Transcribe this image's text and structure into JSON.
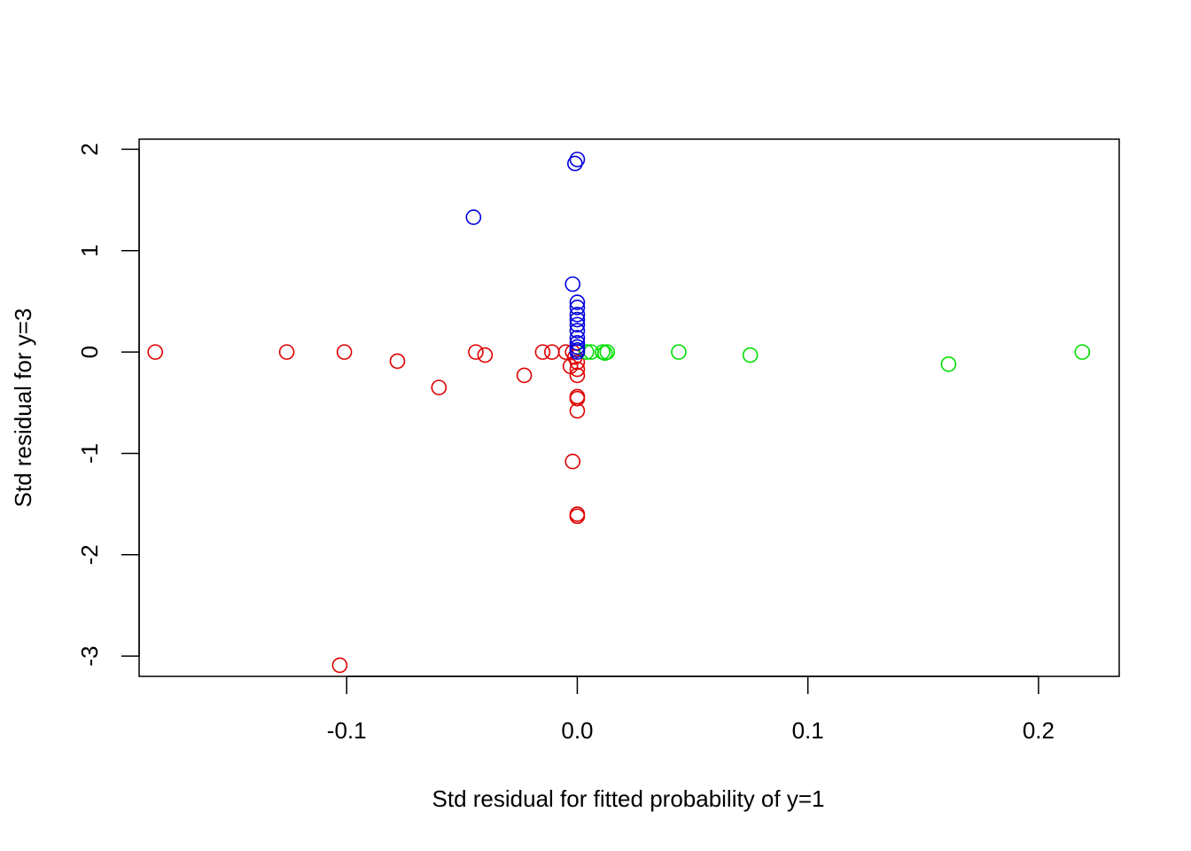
{
  "chart_data": {
    "type": "scatter",
    "title": "",
    "xlabel": "Std residual for fitted probability of y=1",
    "ylabel": "Std residual for y=3",
    "xlim": [
      -0.19,
      0.235
    ],
    "ylim": [
      -3.2,
      2.1
    ],
    "x_ticks": [
      -0.1,
      0.0,
      0.1,
      0.2
    ],
    "x_tick_labels": [
      "-0.1",
      "0.0",
      "0.1",
      "0.2"
    ],
    "y_ticks": [
      -3,
      -2,
      -1,
      0,
      1,
      2
    ],
    "y_tick_labels": [
      "-3",
      "-2",
      "-1",
      "0",
      "1",
      "2"
    ],
    "grid": false,
    "series": [
      {
        "color": "#DF0000",
        "points": [
          {
            "x": -0.183,
            "y": 0.0
          },
          {
            "x": -0.126,
            "y": 0.0
          },
          {
            "x": -0.101,
            "y": 0.0
          },
          {
            "x": -0.078,
            "y": -0.09
          },
          {
            "x": -0.06,
            "y": -0.35
          },
          {
            "x": -0.044,
            "y": 0.0
          },
          {
            "x": -0.04,
            "y": -0.03
          },
          {
            "x": -0.023,
            "y": -0.23
          },
          {
            "x": -0.015,
            "y": 0.0
          },
          {
            "x": -0.011,
            "y": 0.0
          },
          {
            "x": -0.005,
            "y": 0.0
          },
          {
            "x": -0.003,
            "y": -0.14
          },
          {
            "x": -0.002,
            "y": 0.0
          },
          {
            "x": -0.001,
            "y": -0.05
          },
          {
            "x": 0.0,
            "y": -0.1
          },
          {
            "x": 0.0,
            "y": -0.17
          },
          {
            "x": 0.0,
            "y": -0.23
          },
          {
            "x": 0.0,
            "y": -0.44
          },
          {
            "x": 0.0,
            "y": -0.46
          },
          {
            "x": 0.0,
            "y": -0.58
          },
          {
            "x": -0.002,
            "y": -1.08
          },
          {
            "x": 0.0,
            "y": -1.6
          },
          {
            "x": 0.0,
            "y": -1.62
          },
          {
            "x": -0.103,
            "y": -3.09
          }
        ]
      },
      {
        "color": "#00DF00",
        "points": [
          {
            "x": 0.004,
            "y": 0.0
          },
          {
            "x": 0.006,
            "y": 0.0
          },
          {
            "x": 0.011,
            "y": 0.0
          },
          {
            "x": 0.012,
            "y": -0.01
          },
          {
            "x": 0.013,
            "y": 0.0
          },
          {
            "x": 0.044,
            "y": 0.0
          },
          {
            "x": 0.075,
            "y": -0.03
          },
          {
            "x": 0.161,
            "y": -0.12
          },
          {
            "x": 0.219,
            "y": 0.0
          }
        ]
      },
      {
        "color": "#0000DF",
        "points": [
          {
            "x": 0.0,
            "y": 1.9
          },
          {
            "x": -0.001,
            "y": 1.86
          },
          {
            "x": -0.045,
            "y": 1.33
          },
          {
            "x": -0.002,
            "y": 0.67
          },
          {
            "x": 0.0,
            "y": 0.49
          },
          {
            "x": 0.0,
            "y": 0.44
          },
          {
            "x": 0.0,
            "y": 0.37
          },
          {
            "x": 0.0,
            "y": 0.32
          },
          {
            "x": 0.0,
            "y": 0.27
          },
          {
            "x": 0.0,
            "y": 0.21
          },
          {
            "x": 0.0,
            "y": 0.14
          },
          {
            "x": 0.0,
            "y": 0.09
          },
          {
            "x": 0.0,
            "y": 0.05
          },
          {
            "x": 0.0,
            "y": 0.02
          },
          {
            "x": 0.0,
            "y": 0.0
          }
        ]
      }
    ]
  }
}
